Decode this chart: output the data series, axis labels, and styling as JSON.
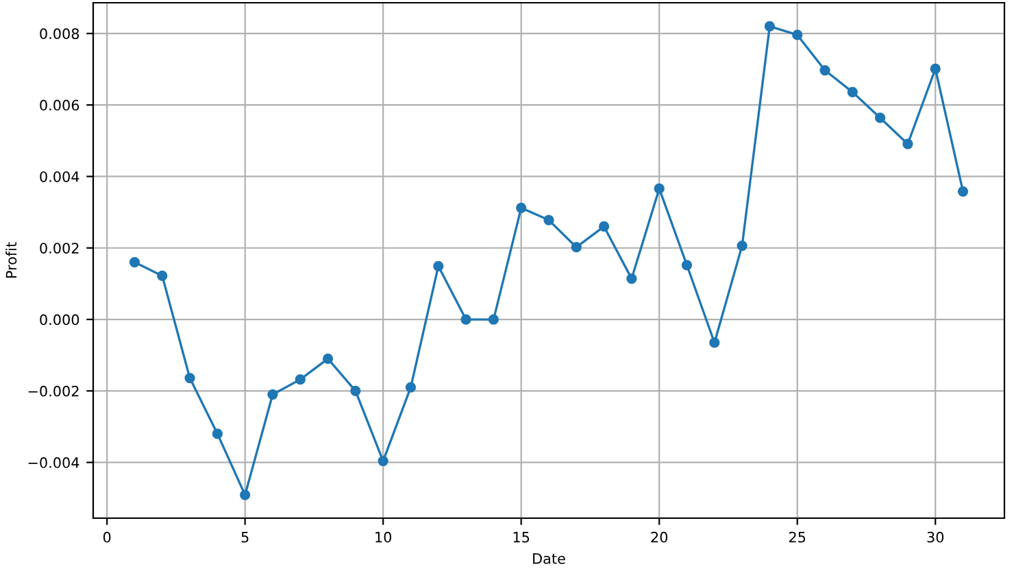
{
  "chart_data": {
    "type": "line",
    "xlabel": "Date",
    "ylabel": "Profit",
    "x": [
      1,
      2,
      3,
      4,
      5,
      6,
      7,
      8,
      9,
      10,
      11,
      12,
      13,
      14,
      15,
      16,
      17,
      18,
      19,
      20,
      21,
      22,
      23,
      24,
      25,
      26,
      27,
      28,
      29,
      30,
      31
    ],
    "series": [
      {
        "color": "#1f77b4",
        "values": [
          0.0016,
          0.00122,
          -0.00164,
          -0.0032,
          -0.00491,
          -0.0021,
          -0.00168,
          -0.0011,
          -0.002,
          -0.00396,
          -0.0019,
          0.00149,
          0.0,
          0.0,
          0.00312,
          0.00278,
          0.00202,
          0.0026,
          0.00114,
          0.00366,
          0.00152,
          -0.00065,
          0.00206,
          0.0082,
          0.00796,
          0.00697,
          0.00636,
          0.00564,
          0.00491,
          0.00701,
          0.00358
        ]
      }
    ],
    "xlim": [
      -0.5,
      32.5
    ],
    "xticks": [
      0,
      5,
      10,
      15,
      20,
      25,
      30
    ],
    "ylim": [
      -0.00556,
      0.00886
    ],
    "yticks": [
      {
        "value": -0.004,
        "label": "−0.004"
      },
      {
        "value": -0.002,
        "label": "−0.002"
      },
      {
        "value": 0.0,
        "label": "0.000"
      },
      {
        "value": 0.002,
        "label": "0.002"
      },
      {
        "value": 0.004,
        "label": "0.004"
      },
      {
        "value": 0.006,
        "label": "0.006"
      },
      {
        "value": 0.008,
        "label": "0.008"
      }
    ],
    "grid": true,
    "marker": "circle",
    "line_style": "solid"
  }
}
